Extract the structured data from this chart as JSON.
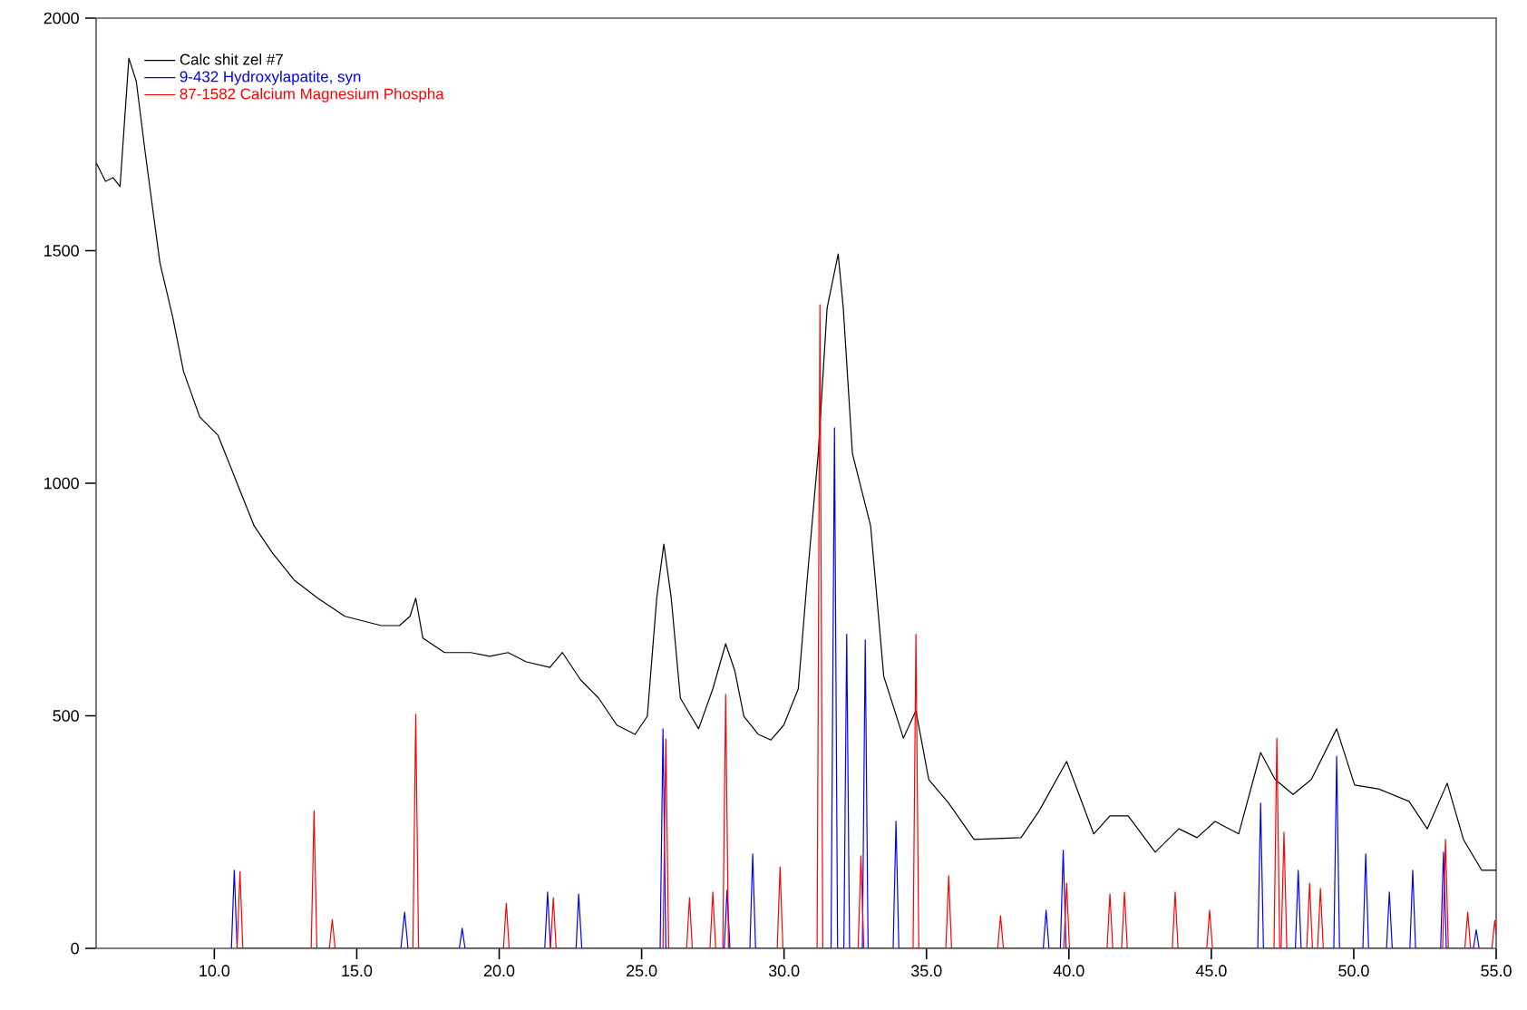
{
  "chart_data": {
    "type": "line",
    "xlim": [
      5.85,
      55.0
    ],
    "ylim": [
      0,
      2000
    ],
    "xticks": [
      {
        "value": 10,
        "label": "10.0"
      },
      {
        "value": 15,
        "label": "15.0"
      },
      {
        "value": 20,
        "label": "20.0"
      },
      {
        "value": 25,
        "label": "25.0"
      },
      {
        "value": 30,
        "label": "30.0"
      },
      {
        "value": 35,
        "label": "35.0"
      },
      {
        "value": 40,
        "label": "40.0"
      },
      {
        "value": 45,
        "label": "45.0"
      },
      {
        "value": 50,
        "label": "50.0"
      },
      {
        "value": 55,
        "label": "55.0"
      }
    ],
    "yticks": [
      0,
      500,
      1000,
      1500,
      2000
    ],
    "legend": "top left",
    "marker": "none",
    "line_style": "solid",
    "grid": false,
    "series": [
      {
        "name": "Calc shit zel #7",
        "color": "#000000",
        "x": [
          5.86,
          6.18,
          6.44,
          6.69,
          7.0,
          7.26,
          7.58,
          8.09,
          8.54,
          8.92,
          9.49,
          10.13,
          10.76,
          11.4,
          12.04,
          12.8,
          13.63,
          14.58,
          15.86,
          16.5,
          16.87,
          17.07,
          17.32,
          18.08,
          19.0,
          19.67,
          20.31,
          20.95,
          21.78,
          22.22,
          22.86,
          23.49,
          24.13,
          24.77,
          25.2,
          25.53,
          25.78,
          26.04,
          26.36,
          27.0,
          27.5,
          27.95,
          28.27,
          28.59,
          29.1,
          29.54,
          29.99,
          30.5,
          30.81,
          31.2,
          31.51,
          31.9,
          32.08,
          32.4,
          33.04,
          33.5,
          34.19,
          34.63,
          35.08,
          35.78,
          36.67,
          38.32,
          38.96,
          39.92,
          40.87,
          41.44,
          42.08,
          43.03,
          43.86,
          44.5,
          45.13,
          45.96,
          46.73,
          47.24,
          47.87,
          48.51,
          49.4,
          50.03,
          50.86,
          51.94,
          52.58,
          53.28,
          53.85,
          54.49,
          55.0
        ],
        "values": [
          1688,
          1649,
          1657,
          1638,
          1914,
          1864,
          1708,
          1474,
          1357,
          1240,
          1142,
          1103,
          1006,
          908,
          850,
          792,
          753,
          714,
          694,
          694,
          714,
          753,
          667,
          636,
          636,
          628,
          636,
          616,
          604,
          636,
          577,
          538,
          480,
          460,
          499,
          753,
          869,
          753,
          538,
          472,
          558,
          655,
          597,
          499,
          460,
          448,
          480,
          558,
          792,
          1064,
          1376,
          1493,
          1376,
          1064,
          908,
          585,
          452,
          511,
          363,
          312,
          234,
          238,
          296,
          402,
          246,
          285,
          285,
          207,
          257,
          238,
          273,
          246,
          421,
          363,
          331,
          363,
          472,
          351,
          343,
          316,
          257,
          355,
          234,
          168,
          168
        ]
      },
      {
        "name": "9-432 Hydroxylapatite, syn",
        "color": "#0000ff",
        "x": [
          10.6,
          10.7,
          10.8,
          16.55,
          16.68,
          16.8,
          18.6,
          18.7,
          18.8,
          21.6,
          21.7,
          21.8,
          22.7,
          22.79,
          22.9,
          25.65,
          25.75,
          25.85,
          27.9,
          28.0,
          28.1,
          28.8,
          28.9,
          29.0,
          31.65,
          31.77,
          31.88,
          32.1,
          32.2,
          32.3,
          32.75,
          32.85,
          32.95,
          33.83,
          33.93,
          34.03,
          39.1,
          39.2,
          39.3,
          39.7,
          39.8,
          39.9,
          46.63,
          46.73,
          46.83,
          47.95,
          48.05,
          48.15,
          49.3,
          49.4,
          49.5,
          50.32,
          50.42,
          50.52,
          51.15,
          51.25,
          51.35,
          51.97,
          52.07,
          52.17,
          53.05,
          53.15,
          53.25,
          54.2,
          54.3,
          54.4
        ],
        "values": [
          0,
          168,
          0,
          0,
          78,
          0,
          0,
          43,
          0,
          0,
          121,
          0,
          0,
          117,
          0,
          0,
          472,
          0,
          0,
          125,
          0,
          0,
          203,
          0,
          0,
          1119,
          0,
          0,
          675,
          0,
          0,
          663,
          0,
          0,
          273,
          0,
          0,
          82,
          0,
          0,
          211,
          0,
          0,
          312,
          0,
          0,
          168,
          0,
          0,
          413,
          0,
          0,
          203,
          0,
          0,
          121,
          0,
          0,
          168,
          0,
          0,
          207,
          0,
          0,
          40,
          0
        ]
      },
      {
        "name": "87-1582 Calcium Magnesium Phospha",
        "color": "#ff0000",
        "x": [
          10.8,
          10.9,
          11.0,
          13.4,
          13.5,
          13.6,
          14.04,
          14.14,
          14.24,
          16.97,
          17.07,
          17.17,
          20.15,
          20.25,
          20.35,
          21.8,
          21.9,
          22.0,
          25.75,
          25.85,
          25.95,
          26.58,
          26.68,
          26.78,
          27.4,
          27.5,
          27.6,
          27.85,
          27.95,
          28.05,
          29.76,
          29.86,
          29.96,
          31.16,
          31.26,
          31.36,
          32.6,
          32.7,
          32.8,
          34.53,
          34.63,
          34.73,
          35.68,
          35.78,
          35.88,
          37.5,
          37.6,
          37.7,
          39.82,
          39.92,
          40.02,
          41.34,
          41.44,
          41.54,
          41.85,
          41.95,
          42.05,
          43.63,
          43.73,
          43.83,
          44.84,
          44.94,
          45.04,
          47.2,
          47.3,
          47.4,
          47.45,
          47.55,
          47.65,
          48.35,
          48.45,
          48.55,
          48.73,
          48.83,
          48.93,
          53.12,
          53.22,
          53.32,
          53.9,
          54.0,
          54.1,
          54.85,
          54.95,
          55.0
        ],
        "values": [
          0,
          165,
          0,
          0,
          296,
          0,
          0,
          62,
          0,
          0,
          503,
          0,
          0,
          97,
          0,
          0,
          109,
          0,
          0,
          450,
          0,
          0,
          109,
          0,
          0,
          121,
          0,
          0,
          546,
          0,
          0,
          175,
          0,
          0,
          1384,
          0,
          0,
          199,
          0,
          0,
          675,
          0,
          0,
          156,
          0,
          0,
          70,
          0,
          0,
          140,
          0,
          0,
          117,
          0,
          0,
          121,
          0,
          0,
          121,
          0,
          0,
          82,
          0,
          0,
          452,
          0,
          0,
          250,
          0,
          0,
          140,
          0,
          0,
          129,
          0,
          0,
          234,
          0,
          0,
          78,
          0,
          0,
          60,
          30
        ]
      }
    ]
  }
}
